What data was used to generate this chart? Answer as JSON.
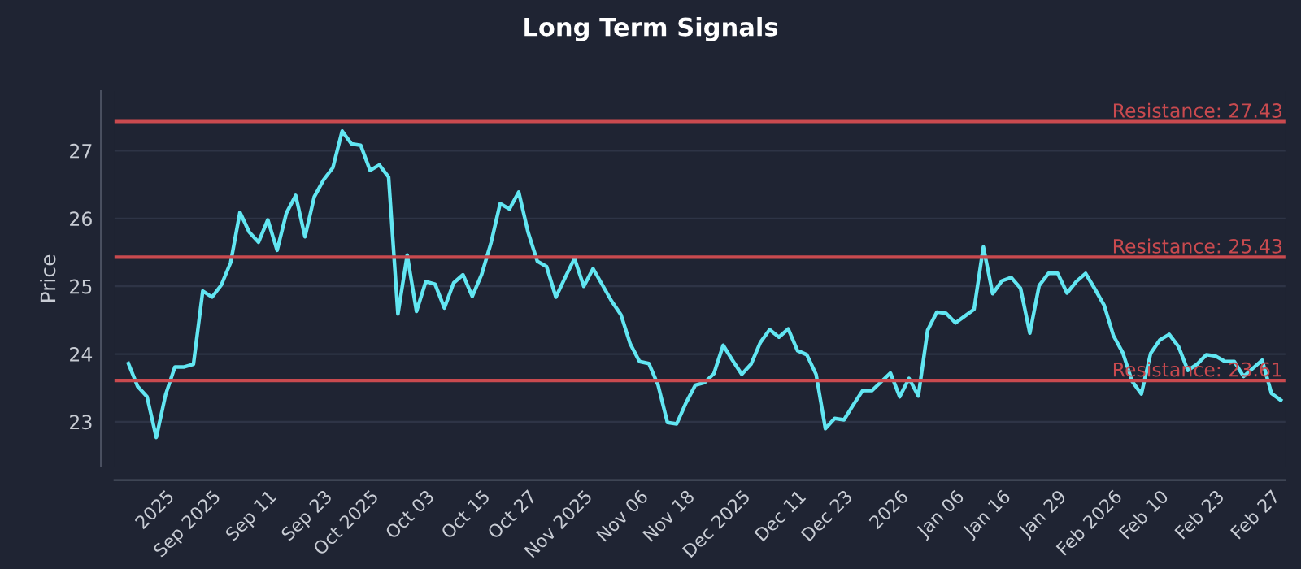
{
  "chart_data": {
    "type": "line",
    "title": "Long Term Signals",
    "ylabel": "Price",
    "categories": [
      null,
      null,
      null,
      null,
      "2025",
      null,
      null,
      null,
      null,
      "Sep 2025",
      null,
      null,
      null,
      null,
      null,
      "Sep 11",
      null,
      null,
      null,
      null,
      null,
      "Sep 23",
      null,
      null,
      null,
      null,
      "Oct 2025",
      null,
      null,
      null,
      null,
      null,
      "Oct 03",
      null,
      null,
      null,
      null,
      null,
      "Oct 15",
      null,
      null,
      null,
      null,
      "Oct 27",
      null,
      null,
      null,
      null,
      null,
      "Nov 2025",
      null,
      null,
      null,
      null,
      null,
      "Nov 06",
      null,
      null,
      null,
      null,
      "Nov 18",
      null,
      null,
      null,
      null,
      null,
      "Dec 2025",
      null,
      null,
      null,
      null,
      null,
      "Dec 11",
      null,
      null,
      null,
      null,
      "Dec 23",
      null,
      null,
      null,
      null,
      null,
      "2026",
      null,
      null,
      null,
      null,
      null,
      "Jan 06",
      null,
      null,
      null,
      null,
      "Jan 16",
      null,
      null,
      null,
      null,
      null,
      "Jan 29",
      null,
      null,
      null,
      null,
      null,
      "Feb 2026",
      null,
      null,
      null,
      null,
      "Feb 10",
      null,
      null,
      null,
      null,
      null,
      "Feb 23",
      null,
      null,
      null,
      null,
      null,
      "Feb 27",
      null
    ],
    "series": [
      {
        "color": "#62e6f2",
        "values": [
          23.86,
          23.52,
          23.37,
          22.77,
          23.4,
          23.81,
          23.81,
          23.85,
          24.93,
          24.84,
          25.02,
          25.35,
          26.09,
          25.8,
          25.65,
          25.98,
          25.53,
          26.08,
          26.34,
          25.73,
          26.32,
          26.57,
          26.75,
          27.29,
          27.1,
          27.08,
          26.71,
          26.79,
          26.61,
          24.59,
          25.46,
          24.63,
          25.07,
          25.03,
          24.68,
          25.05,
          25.17,
          24.85,
          25.17,
          25.63,
          26.22,
          26.14,
          26.39,
          25.8,
          25.37,
          25.29,
          24.84,
          25.13,
          25.41,
          25.0,
          25.26,
          25.02,
          24.78,
          24.58,
          24.15,
          23.89,
          23.86,
          23.54,
          22.99,
          22.97,
          23.28,
          23.54,
          23.58,
          23.71,
          24.13,
          23.91,
          23.7,
          23.85,
          24.17,
          24.36,
          24.25,
          24.37,
          24.05,
          23.99,
          23.7,
          22.9,
          23.05,
          23.03,
          23.25,
          23.46,
          23.46,
          23.59,
          23.72,
          23.37,
          23.64,
          23.38,
          24.35,
          24.62,
          24.6,
          24.46,
          24.56,
          24.66,
          25.58,
          24.89,
          25.08,
          25.13,
          24.97,
          24.31,
          25.01,
          25.19,
          25.19,
          24.9,
          25.07,
          25.19,
          24.96,
          24.72,
          24.27,
          24.02,
          23.6,
          23.41,
          24.01,
          24.21,
          24.29,
          24.11,
          23.76,
          23.85,
          23.99,
          23.97,
          23.89,
          23.89,
          23.67,
          23.79,
          23.91,
          23.42,
          23.32
        ]
      }
    ],
    "ylim": [
      22.34,
      27.88
    ],
    "yticks": [
      23,
      24,
      25,
      26,
      27
    ],
    "grid": "y",
    "line_style": "solid",
    "marker": "none",
    "ref_lines": [
      {
        "axis": "y",
        "value": 27.43,
        "label": "Resistance: 27.43",
        "color": "#c94a4f"
      },
      {
        "axis": "y",
        "value": 25.43,
        "label": "Resistance: 25.43",
        "color": "#c94a4f"
      },
      {
        "axis": "y",
        "value": 23.61,
        "label": "Resistance: 23.61",
        "color": "#c94a4f"
      }
    ]
  }
}
